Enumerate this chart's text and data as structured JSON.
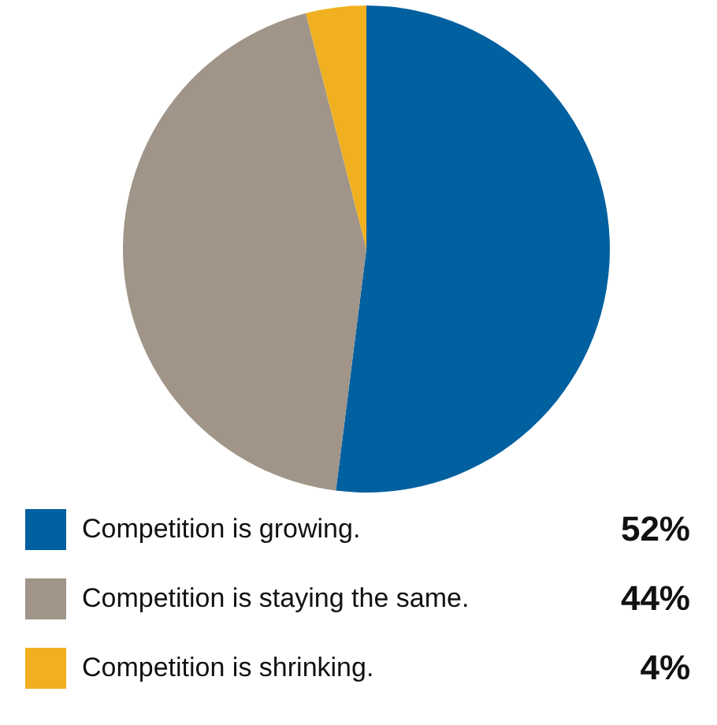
{
  "chart_data": {
    "type": "pie",
    "categories": [
      "Competition is growing.",
      "Competition is staying the same.",
      "Competition is shrinking."
    ],
    "values": [
      52,
      44,
      4
    ],
    "colors": [
      "#0060a0",
      "#a09588",
      "#f0b020"
    ],
    "value_labels": [
      "52%",
      "44%",
      "4%"
    ],
    "legend": "bottom"
  }
}
